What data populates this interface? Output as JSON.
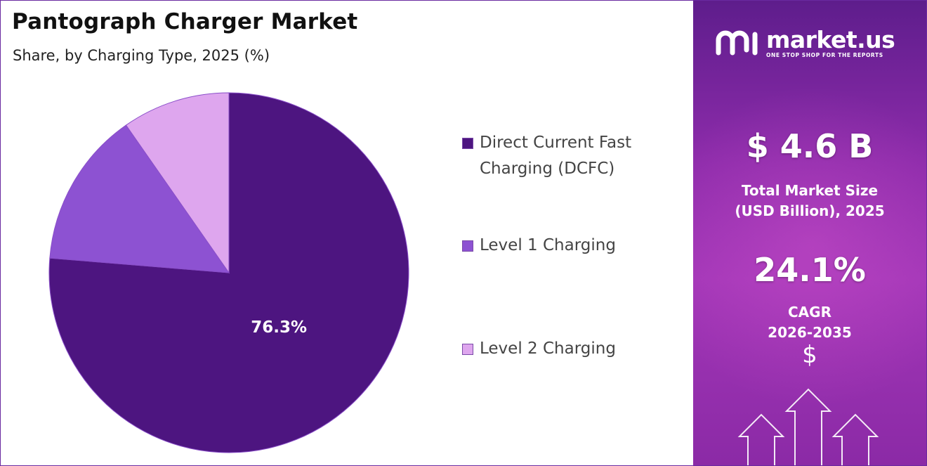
{
  "chart_data": {
    "type": "pie",
    "title": "Pantograph Charger Market",
    "subtitle": "Share, by Charging Type, 2025 (%)",
    "categories": [
      "Direct Current Fast Charging (DCFC)",
      "Level 1 Charging",
      "Level 2 Charging"
    ],
    "values": [
      76.3,
      14.0,
      9.7
    ],
    "colors": [
      "#4d1580",
      "#8d52d2",
      "#dea6ee"
    ],
    "data_labels": [
      "76.3%",
      "",
      ""
    ],
    "legend_position": "right",
    "start_angle": "12 o'clock",
    "direction": "clockwise"
  },
  "sidebar": {
    "brand_name": "market.us",
    "brand_tagline": "ONE STOP SHOP FOR THE REPORTS",
    "market_size_value": "$ 4.6 B",
    "market_size_label_line1": "Total Market Size",
    "market_size_label_line2": "(USD Billion), 2025",
    "cagr_value": "24.1%",
    "cagr_label_line1": "CAGR",
    "cagr_label_line2": "2026-2035",
    "dollar_icon": "dollar-sign-icon",
    "arrows_icon": "growth-arrows-icon"
  }
}
